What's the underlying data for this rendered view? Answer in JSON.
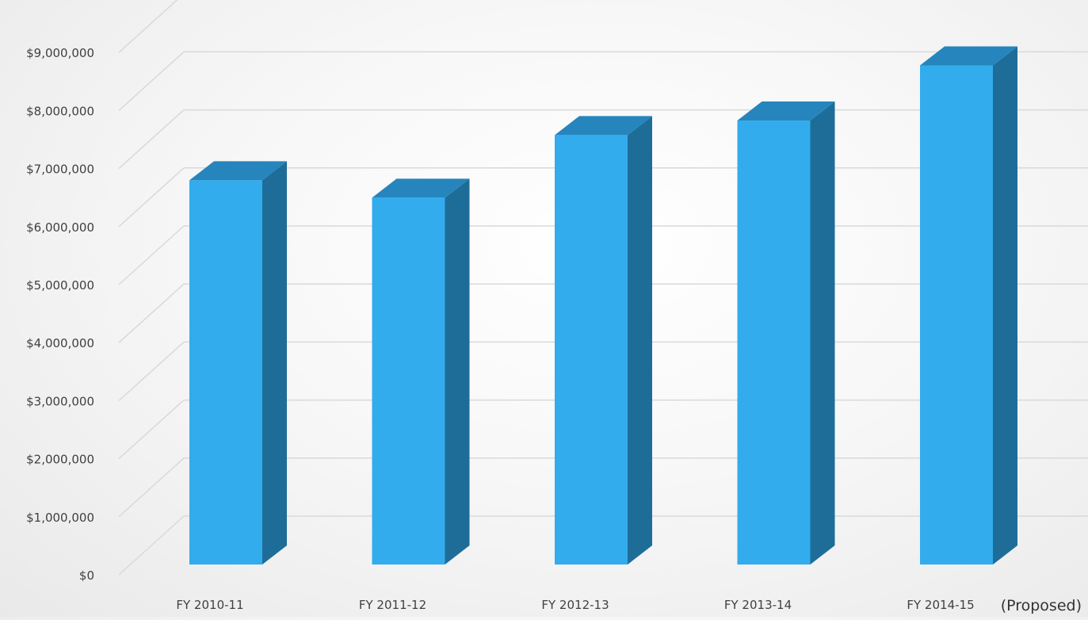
{
  "chart_data": {
    "type": "bar",
    "title": "",
    "xlabel": "",
    "ylabel": "",
    "categories": [
      "FY 2010-11",
      "FY 2011-12",
      "FY 2012-13",
      "FY 2013-14",
      "FY 2014-15"
    ],
    "values": [
      6620000,
      6320000,
      7400000,
      7650000,
      8600000
    ],
    "category_note": "(Proposed)",
    "ylim": [
      0,
      10000000
    ],
    "yticks": [
      0,
      1000000,
      2000000,
      3000000,
      4000000,
      5000000,
      6000000,
      7000000,
      8000000,
      9000000
    ],
    "ytick_labels": [
      "$0",
      "$1,000,000",
      "$2,000,000",
      "$3,000,000",
      "$4,000,000",
      "$5,000,000",
      "$6,000,000",
      "$7,000,000",
      "$8,000,000",
      "$9,000,000"
    ],
    "grid": true,
    "legend": "none",
    "bar_style": "3d-column",
    "colors": {
      "bar_front": "#32acec",
      "bar_top": "#2685bc",
      "bar_side": "#1e6d99",
      "grid": "#d9d9d9"
    }
  }
}
